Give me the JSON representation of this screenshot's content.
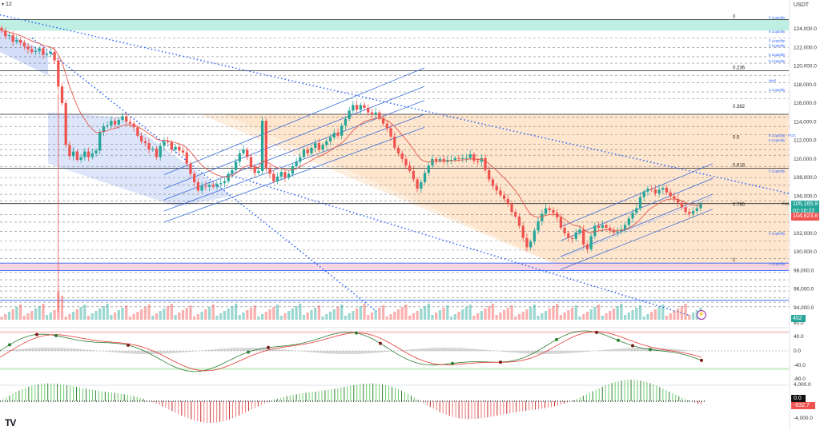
{
  "header": {
    "interval": "12",
    "currency": "USDT"
  },
  "colors": {
    "up": "#26a69a",
    "down": "#ef5350",
    "fib_zone": "#fde3c8",
    "top_band": "#bfeee2",
    "pink_band": "#f7c6d6",
    "ema": "#e2574c",
    "channel": "#3b6cd8",
    "trendline": "#2962ff",
    "price_bg_green": "#26a69a",
    "price_bg_red": "#ef5350"
  },
  "price_axis": {
    "ticks": [
      "124,000.0",
      "122,000.0",
      "120,000.0",
      "118,000.0",
      "116,000.0",
      "114,000.0",
      "112,000.0",
      "110,000.0",
      "108,000.0",
      "106,000.0",
      "102,000.0",
      "100,000.0",
      "98,000.0",
      "96,000.0",
      "94,000.0"
    ],
    "last_price": "105,165.9",
    "countdown": "02:10:22",
    "alt_price": "104,823.8",
    "volume_value": "452"
  },
  "fib_levels": [
    {
      "label": "0",
      "price": 125000
    },
    {
      "label": "0.236",
      "price": 119500
    },
    {
      "label": "0.382",
      "price": 115300
    },
    {
      "label": "0.5",
      "price": 112000
    },
    {
      "label": "0.618",
      "price": 109000
    },
    {
      "label": "0.786",
      "price": 104800
    },
    {
      "label": "1",
      "price": 98800
    }
  ],
  "liquidity_labels": [
    {
      "label": "5 Liquidity",
      "price": 125000
    },
    {
      "label": "5 Liquidity",
      "price": 123500
    },
    {
      "label": "5 Liquidity",
      "price": 122500
    },
    {
      "label": "5 Liquidity",
      "price": 122000
    },
    {
      "label": "5 Liquidity",
      "price": 121000
    },
    {
      "label": "5 Liquidity",
      "price": 120300
    },
    {
      "label": "Well",
      "price": 118200
    },
    {
      "label": "5 Liquidity",
      "price": 117200
    },
    {
      "label": "5 Liquidity - POC",
      "price": 112300
    },
    {
      "label": "5 Liquidity",
      "price": 111800
    },
    {
      "label": "5 Liquidity",
      "price": 108500
    },
    {
      "label": "5 Liquidity",
      "price": 101800
    },
    {
      "label": "1 Liquidity",
      "price": 98500
    }
  ],
  "vwap_label": "Vwa",
  "macd_axis": {
    "ticks": [
      "80.0",
      "40.0",
      "0.0",
      "-40.0",
      "-80.0"
    ]
  },
  "hist_axis": {
    "ticks": [
      "4,000.0",
      "-4,000.0"
    ],
    "zero_value": "0.0",
    "last_value": "-632.7"
  },
  "logo_text": "TV",
  "chart_data": {
    "type": "candlestick",
    "title": "",
    "ylim": [
      93000,
      126000
    ],
    "close": [
      123800,
      123200,
      123300,
      122600,
      122800,
      122500,
      122100,
      121800,
      121500,
      121600,
      121900,
      121200,
      121300,
      121500,
      120600,
      117800,
      116000,
      111500,
      110300,
      110800,
      109900,
      110200,
      110800,
      110200,
      110600,
      110900,
      112900,
      113500,
      113600,
      114100,
      113700,
      114200,
      114600,
      114000,
      113800,
      113400,
      112500,
      111900,
      111700,
      111000,
      111100,
      110200,
      111400,
      111900,
      111800,
      111000,
      111300,
      110900,
      110700,
      109500,
      108400,
      107500,
      106600,
      107100,
      107000,
      107200,
      107000,
      107300,
      107400,
      107600,
      108400,
      108800,
      109700,
      110600,
      111000,
      110200,
      109100,
      108500,
      108700,
      114100,
      109000,
      108400,
      107600,
      108100,
      108600,
      108000,
      108400,
      109200,
      109700,
      110200,
      111000,
      110600,
      111200,
      111700,
      111000,
      111500,
      111900,
      112300,
      112800,
      112500,
      113600,
      114300,
      115200,
      115800,
      115300,
      115800,
      115500,
      115000,
      114800,
      115000,
      114400,
      113800,
      113300,
      112400,
      111200,
      110600,
      110000,
      109300,
      108700,
      107800,
      106800,
      107500,
      108500,
      109300,
      110000,
      109800,
      110000,
      109700,
      109900,
      109900,
      110100,
      110000,
      110100,
      110100,
      110500,
      109800,
      109700,
      110100,
      108800,
      107800,
      107100,
      106600,
      106100,
      105700,
      105200,
      104300,
      103800,
      102800,
      101500,
      100500,
      101100,
      102300,
      103300,
      104100,
      104700,
      104500,
      104200,
      103700,
      102600,
      102000,
      101500,
      101400,
      102100,
      102400,
      100800,
      100300,
      101700,
      102800,
      102600,
      102900,
      102600,
      102300,
      102100,
      102200,
      102400,
      102900,
      103600,
      104200,
      104700,
      105900,
      106500,
      106800,
      106700,
      106300,
      106700,
      106900,
      106400,
      106000,
      105700,
      105300,
      104800,
      104300,
      104100,
      104400,
      104700,
      105166
    ],
    "volume_series": "relative volume bars",
    "macd_range": [
      -80,
      80
    ],
    "hist_range": [
      -4000,
      4000
    ]
  }
}
